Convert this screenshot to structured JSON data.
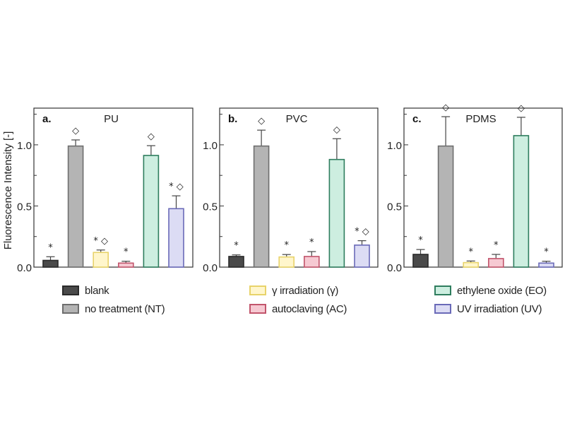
{
  "chart_data": [
    {
      "type": "bar",
      "panel_label": "a.",
      "title": "PU",
      "xlabel": "",
      "ylabel": "Fluorescence Intensity [-]",
      "ylim": [
        0,
        1.3
      ],
      "yticks": [
        0.0,
        0.5,
        1.0
      ],
      "yticks_minor": [
        0.25,
        0.75,
        1.25
      ],
      "ytick_labels": [
        "0.0",
        "0.5",
        "1.0"
      ],
      "categories": [
        "blank",
        "NT",
        "γ",
        "AC",
        "EO",
        "UV"
      ],
      "values": [
        0.055,
        0.99,
        0.12,
        0.033,
        0.913,
        0.478
      ],
      "errors": [
        0.03,
        0.05,
        0.02,
        0.015,
        0.08,
        0.105
      ],
      "markers": [
        "*",
        "◇",
        "*◇",
        "*",
        "◇",
        "*◇"
      ]
    },
    {
      "type": "bar",
      "panel_label": "b.",
      "title": "PVC",
      "xlabel": "",
      "ylabel": "",
      "ylim": [
        0,
        1.3
      ],
      "yticks": [
        0.0,
        0.5,
        1.0
      ],
      "yticks_minor": [
        0.25,
        0.75,
        1.25
      ],
      "ytick_labels": [
        "0.0",
        "0.5",
        "1.0"
      ],
      "categories": [
        "blank",
        "NT",
        "γ",
        "AC",
        "EO",
        "UV"
      ],
      "values": [
        0.087,
        0.99,
        0.083,
        0.087,
        0.88,
        0.18
      ],
      "errors": [
        0.013,
        0.13,
        0.02,
        0.04,
        0.17,
        0.036
      ],
      "markers": [
        "*",
        "◇",
        "*",
        "*",
        "◇",
        "*◇"
      ]
    },
    {
      "type": "bar",
      "panel_label": "c.",
      "title": "PDMS",
      "xlabel": "",
      "ylabel": "",
      "ylim": [
        0,
        1.3
      ],
      "yticks": [
        0.0,
        0.5,
        1.0
      ],
      "yticks_minor": [
        0.25,
        0.75,
        1.25
      ],
      "ytick_labels": [
        "0.0",
        "0.5",
        "1.0"
      ],
      "categories": [
        "blank",
        "NT",
        "γ",
        "AC",
        "EO",
        "UV"
      ],
      "values": [
        0.104,
        0.99,
        0.037,
        0.07,
        1.075,
        0.033
      ],
      "errors": [
        0.04,
        0.24,
        0.013,
        0.034,
        0.15,
        0.015
      ],
      "markers": [
        "*",
        "◇",
        "*",
        "*",
        "◇",
        "*"
      ]
    }
  ],
  "series_styles": [
    {
      "key": "blank",
      "fill": "#4a4a4a",
      "stroke": "#2a2a2a"
    },
    {
      "key": "NT",
      "fill": "#b4b4b4",
      "stroke": "#6e6e6e"
    },
    {
      "key": "γ",
      "fill": "#fff6cc",
      "stroke": "#e8d36a"
    },
    {
      "key": "AC",
      "fill": "#f6c9d2",
      "stroke": "#c2556c"
    },
    {
      "key": "EO",
      "fill": "#cdeee0",
      "stroke": "#2e7d5e"
    },
    {
      "key": "UV",
      "fill": "#dcdcf4",
      "stroke": "#6a6ab8"
    }
  ],
  "legend": {
    "placement": "bottom",
    "items": [
      {
        "label": "blank",
        "series": 0
      },
      {
        "label": "no treatment (NT)",
        "series": 1
      },
      {
        "label": "γ irradiation (γ)",
        "series": 2
      },
      {
        "label": "autoclaving (AC)",
        "series": 3
      },
      {
        "label": "ethylene oxide (EO)",
        "series": 4
      },
      {
        "label": "UV irradiation (UV)",
        "series": 5
      }
    ]
  }
}
